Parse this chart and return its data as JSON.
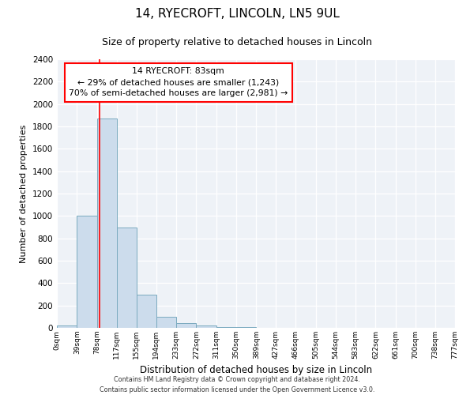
{
  "title": "14, RYECROFT, LINCOLN, LN5 9UL",
  "subtitle": "Size of property relative to detached houses in Lincoln",
  "xlabel": "Distribution of detached houses by size in Lincoln",
  "ylabel": "Number of detached properties",
  "bin_edges": [
    0,
    39,
    78,
    117,
    155,
    194,
    233,
    272,
    311,
    350,
    389,
    427,
    466,
    505,
    544,
    583,
    622,
    661,
    700,
    738,
    777
  ],
  "bin_labels": [
    "0sqm",
    "39sqm",
    "78sqm",
    "117sqm",
    "155sqm",
    "194sqm",
    "233sqm",
    "272sqm",
    "311sqm",
    "350sqm",
    "389sqm",
    "427sqm",
    "466sqm",
    "505sqm",
    "544sqm",
    "583sqm",
    "622sqm",
    "661sqm",
    "700sqm",
    "738sqm",
    "777sqm"
  ],
  "bar_heights": [
    20,
    1000,
    1870,
    900,
    300,
    100,
    40,
    20,
    10,
    5,
    0,
    0,
    0,
    0,
    0,
    0,
    0,
    0,
    0,
    0
  ],
  "bar_color": "#ccdcec",
  "bar_edge_color": "#7aaabf",
  "property_line_x": 83,
  "property_line_color": "red",
  "annotation_title": "14 RYECROFT: 83sqm",
  "annotation_line1": "← 29% of detached houses are smaller (1,243)",
  "annotation_line2": "70% of semi-detached houses are larger (2,981) →",
  "annotation_box_color": "white",
  "annotation_box_edge": "red",
  "ylim": [
    0,
    2400
  ],
  "yticks": [
    0,
    200,
    400,
    600,
    800,
    1000,
    1200,
    1400,
    1600,
    1800,
    2000,
    2200,
    2400
  ],
  "bg_color": "#eef2f7",
  "grid_color": "#ffffff",
  "footer_line1": "Contains HM Land Registry data © Crown copyright and database right 2024.",
  "footer_line2": "Contains public sector information licensed under the Open Government Licence v3.0."
}
